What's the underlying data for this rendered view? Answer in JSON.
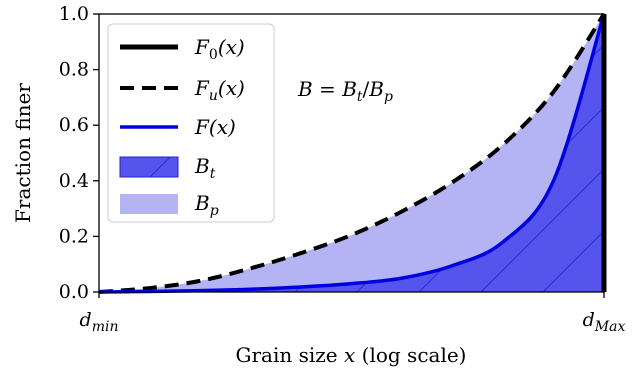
{
  "chart_data": {
    "type": "area",
    "xlabel": "Grain size x (log scale)",
    "ylabel": "Fraction finer",
    "xscale": "log",
    "xticks": [
      "d_min",
      "d_Max"
    ],
    "ylim": [
      0.0,
      1.0
    ],
    "yticks": [
      "0.0",
      "0.2",
      "0.4",
      "0.6",
      "0.8",
      "1.0"
    ],
    "x": [
      0.0,
      0.1,
      0.2,
      0.3,
      0.4,
      0.5,
      0.6,
      0.7,
      0.8,
      0.9,
      1.0
    ],
    "series": [
      {
        "name": "F_0(x)",
        "style": "thick black solid",
        "color": "#000000",
        "values": [
          0,
          0,
          0,
          0,
          0,
          0,
          0,
          0,
          0,
          0,
          1.0
        ]
      },
      {
        "name": "F_u(x)",
        "style": "black dashed",
        "color": "#000000",
        "values": [
          0.0,
          0.014,
          0.04,
          0.085,
          0.14,
          0.205,
          0.29,
          0.395,
          0.53,
          0.72,
          1.0
        ]
      },
      {
        "name": "F(x)",
        "style": "blue solid",
        "color": "#0000e0",
        "values": [
          0.0,
          0.002,
          0.005,
          0.01,
          0.018,
          0.03,
          0.05,
          0.095,
          0.18,
          0.4,
          1.0
        ]
      }
    ],
    "areas": [
      {
        "name": "B_t",
        "between": [
          "F_0(x)",
          "F(x)"
        ],
        "color": "#5555ee",
        "hatch": "diagonal"
      },
      {
        "name": "B_p",
        "between": [
          "F(x)",
          "F_u(x)"
        ],
        "color": "#b4b4f5"
      }
    ],
    "annotation": "B = B_t/B_p",
    "legend_position": "upper-left",
    "grid": false
  },
  "text": {
    "yticks": [
      "0.0",
      "0.2",
      "0.4",
      "0.6",
      "0.8",
      "1.0"
    ],
    "xtick_min_main": "d",
    "xtick_min_sub": "min",
    "xtick_max_main": "d",
    "xtick_max_sub": "Max",
    "xlabel_prefix": "Grain size ",
    "xlabel_var": "x",
    "xlabel_suffix": " (log scale)",
    "ylabel": "Fraction finer",
    "annotation": {
      "B1": "B",
      "eq": " = ",
      "B2": "B",
      "t": "t",
      "slash": "/",
      "B3": "B",
      "p": "p"
    },
    "legend": {
      "f0": {
        "main": "F",
        "sub": "0",
        "arg": "(x)"
      },
      "fu": {
        "main": "F",
        "sub": "u",
        "arg": "(x)"
      },
      "f": {
        "main": "F",
        "arg": "(x)"
      },
      "bt": {
        "main": "B",
        "sub": "t"
      },
      "bp": {
        "main": "B",
        "sub": "p"
      }
    }
  }
}
